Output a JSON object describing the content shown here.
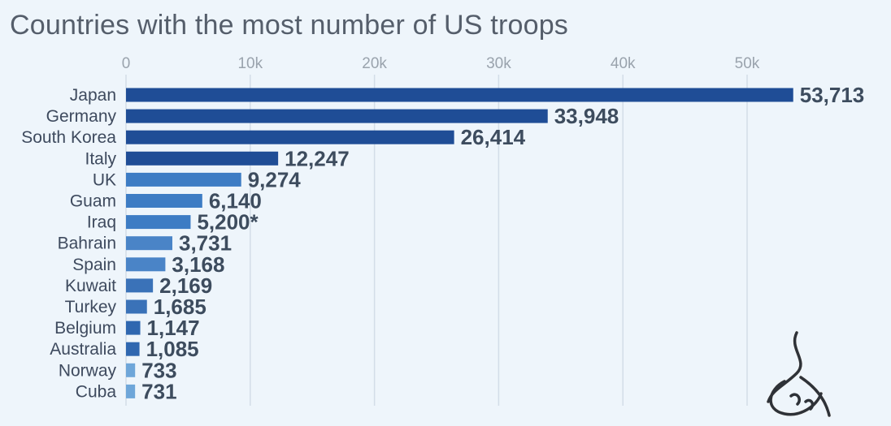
{
  "chart_data": {
    "type": "bar",
    "orientation": "horizontal",
    "title": "Countries with the most number of US troops",
    "xlabel": "",
    "ylabel": "",
    "xlim": [
      0,
      55000
    ],
    "ticks": [
      0,
      10000,
      20000,
      30000,
      40000,
      50000
    ],
    "tick_labels": [
      "0",
      "10k",
      "20k",
      "30k",
      "40k",
      "50k"
    ],
    "grid": true,
    "categories": [
      "Japan",
      "Germany",
      "South Korea",
      "Italy",
      "UK",
      "Guam",
      "Iraq",
      "Bahrain",
      "Spain",
      "Kuwait",
      "Turkey",
      "Belgium",
      "Australia",
      "Norway",
      "Cuba"
    ],
    "values": [
      53713,
      33948,
      26414,
      12247,
      9274,
      6140,
      5200,
      3731,
      3168,
      2169,
      1685,
      1147,
      1085,
      733,
      731
    ],
    "value_labels": [
      "53,713",
      "33,948",
      "26,414",
      "12,247",
      "9,274",
      "6,140",
      "5,200*",
      "3,731",
      "3,168",
      "2,169",
      "1,685",
      "1,147",
      "1,085",
      "733",
      "731"
    ],
    "bar_colors": [
      "#1f4d96",
      "#1f4d96",
      "#1f4d96",
      "#1f4d96",
      "#3d7cc4",
      "#3d7cc4",
      "#3d7cc4",
      "#4a84c7",
      "#4a84c7",
      "#3a72b8",
      "#3a72b8",
      "#2f67b0",
      "#2f67b0",
      "#6ea6d9",
      "#6ea6d9"
    ]
  },
  "colors": {
    "background": "#eef5fb",
    "grid": "#d3dde8"
  },
  "logo": {
    "name": "al-jazeera-logo-icon"
  }
}
